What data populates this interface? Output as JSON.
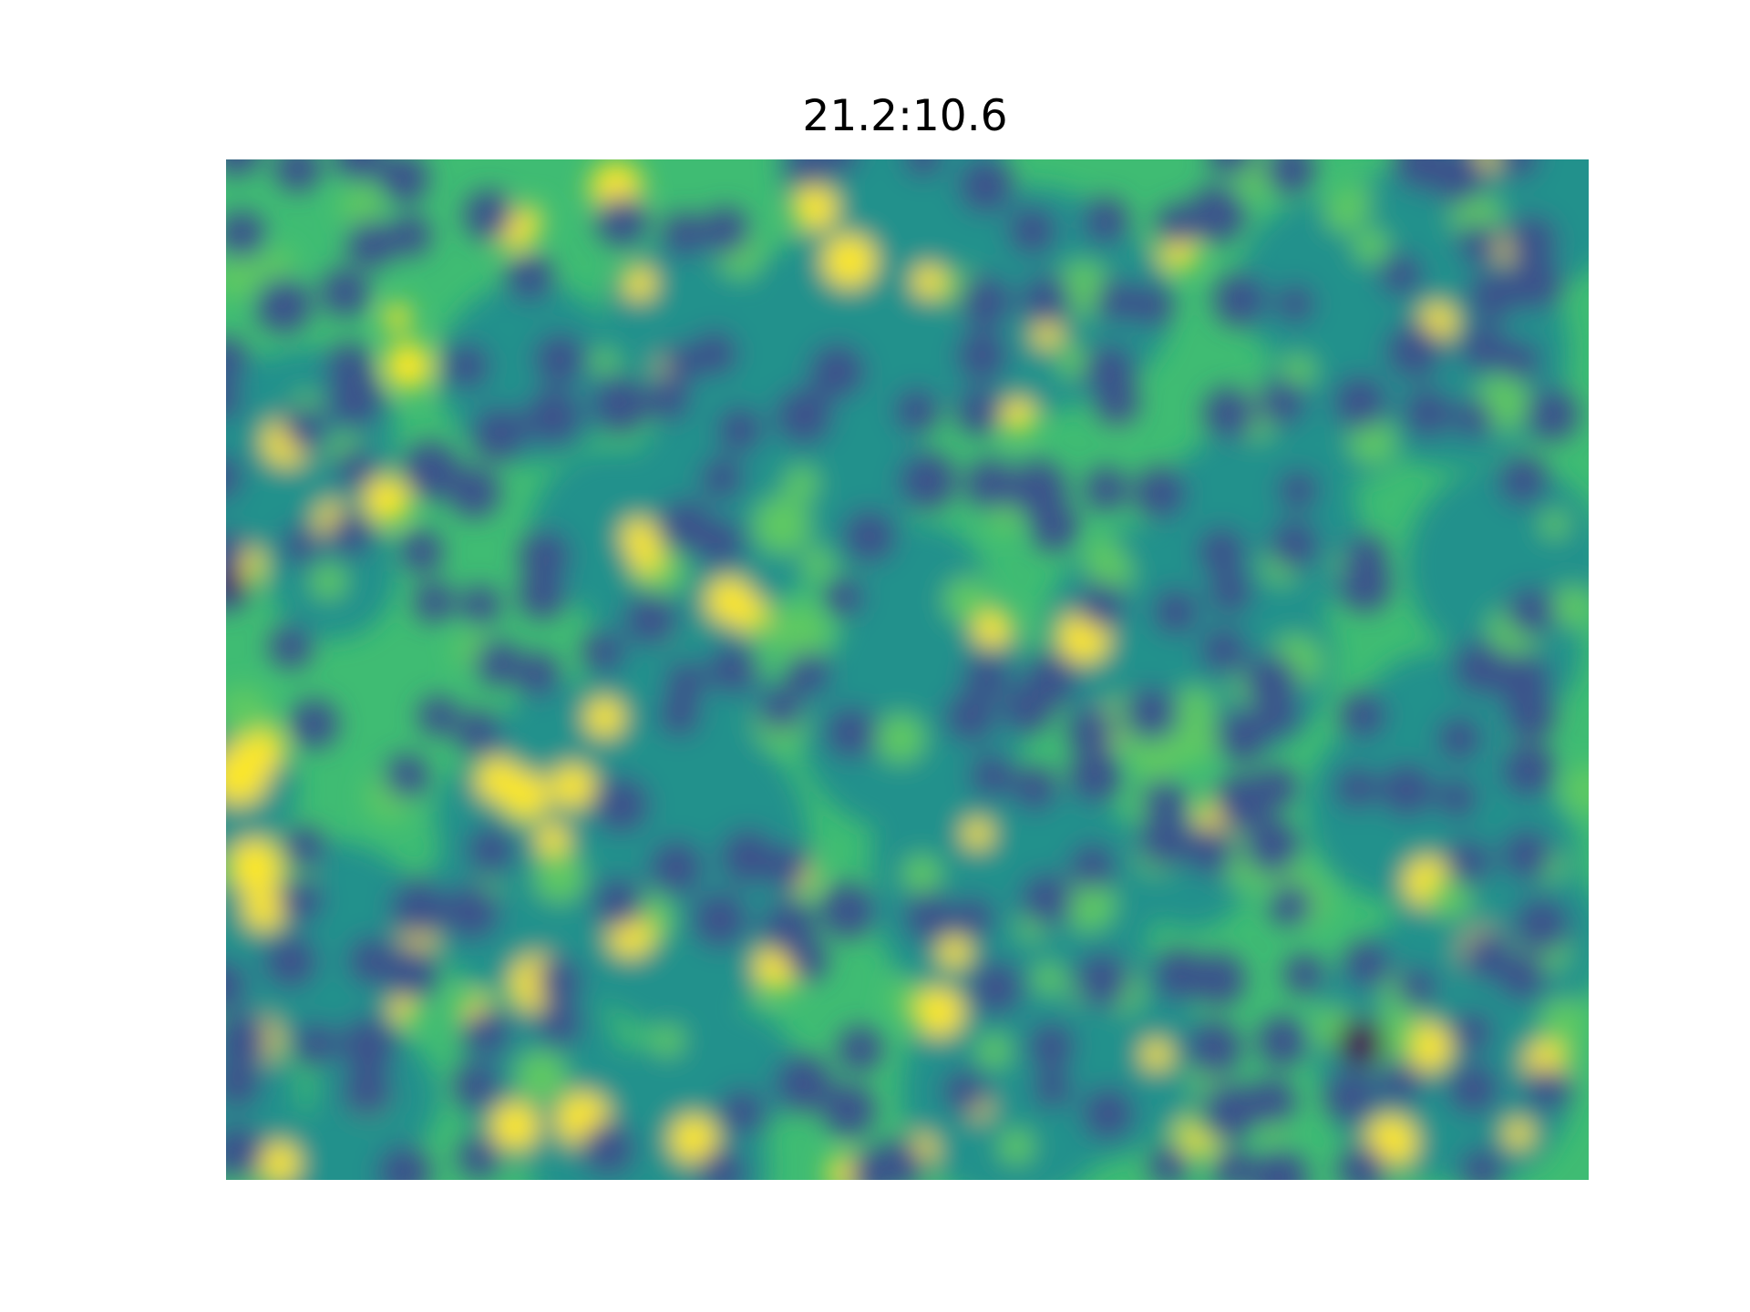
{
  "chart_data": {
    "type": "heatmap",
    "title": "21.2:10.6",
    "xlabel": "",
    "ylabel": "",
    "colormap": "viridis",
    "colormap_stops": [
      "#440154",
      "#3b528b",
      "#21918c",
      "#5ec962",
      "#fde725"
    ],
    "axes_visible": false,
    "grid": false,
    "legend": "none",
    "value_range": [
      0,
      1
    ]
  }
}
